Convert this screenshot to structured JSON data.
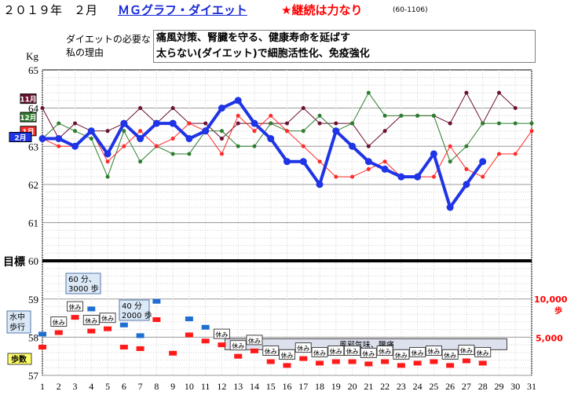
{
  "header": {
    "year_month": "２０１９年　２月",
    "title": "ＭＧグラフ・ダイエット",
    "motto": "★継続は力なり",
    "code": "(60-1106)"
  },
  "reason": {
    "label": "ダイエットの必要な私の理由",
    "lines": [
      "痛風対策、腎臓を守る、健康寿命を延ばす",
      "太らない(ダイエット)で細胞活性化、免疫強化"
    ]
  },
  "annotations": {
    "goal": "目標",
    "steps_label": "歩数",
    "swim_label": "水中歩行",
    "rest": "休み",
    "cold": "風邪気味、腰痛",
    "note1": [
      "60 分、",
      "3000 歩"
    ],
    "note2": [
      "40 分",
      "2000 歩"
    ]
  },
  "colors": {
    "feb": "#1e34e6",
    "jan": "#ff2a2a",
    "dec": "#2e7d2e",
    "nov": "#6b1030",
    "swim": "#1e6fd0",
    "steps": "#ff1a1a",
    "goal_line": "#000000",
    "right_axis": "#ff0000"
  },
  "chart_data": {
    "type": "line",
    "x": [
      1,
      2,
      3,
      4,
      5,
      6,
      7,
      8,
      9,
      10,
      11,
      12,
      13,
      14,
      15,
      16,
      17,
      18,
      19,
      20,
      21,
      22,
      23,
      24,
      25,
      26,
      27,
      28,
      29,
      30,
      31
    ],
    "xlim": [
      1,
      31
    ],
    "ylabel": "Kg",
    "yticks": [
      65,
      64,
      63,
      62,
      61,
      60,
      59,
      58,
      57
    ],
    "ylim": [
      57,
      65
    ],
    "goal": 60,
    "series": [
      {
        "name": "2月",
        "values": [
          63.2,
          63.2,
          63.0,
          63.4,
          62.8,
          63.6,
          63.2,
          63.6,
          63.6,
          63.2,
          63.4,
          64.0,
          64.2,
          63.6,
          63.2,
          62.6,
          62.6,
          62.0,
          63.4,
          63.0,
          62.6,
          62.4,
          62.2,
          62.2,
          62.8,
          61.4,
          62.0,
          62.6,
          null,
          null,
          null
        ]
      },
      {
        "name": "1月",
        "values": [
          63.2,
          63.0,
          63.0,
          63.4,
          62.6,
          63.0,
          63.4,
          63.0,
          63.2,
          63.6,
          63.4,
          62.8,
          63.8,
          63.4,
          63.8,
          63.4,
          63.0,
          62.6,
          62.2,
          62.2,
          62.4,
          62.6,
          62.2,
          62.2,
          62.2,
          63.0,
          62.4,
          62.2,
          62.8,
          62.8,
          63.4
        ]
      },
      {
        "name": "12月",
        "values": [
          63.2,
          63.6,
          63.4,
          63.2,
          62.2,
          63.4,
          62.6,
          63.0,
          62.8,
          62.8,
          63.4,
          63.4,
          63.0,
          63.0,
          63.6,
          63.4,
          63.4,
          63.8,
          63.4,
          63.6,
          64.4,
          63.8,
          63.8,
          63.8,
          63.8,
          62.6,
          63.0,
          63.6,
          63.6,
          63.6,
          63.6
        ]
      },
      {
        "name": "11月",
        "values": [
          64.0,
          63.2,
          63.6,
          63.4,
          63.4,
          63.6,
          64.0,
          63.6,
          64.0,
          63.6,
          63.6,
          63.2,
          63.6,
          63.6,
          63.6,
          63.6,
          64.0,
          63.6,
          63.6,
          63.6,
          63.0,
          63.4,
          63.8,
          63.8,
          63.8,
          63.6,
          64.4,
          63.6,
          64.4,
          64.0,
          null
        ]
      }
    ],
    "right_axis": {
      "ticks": [
        "10,000",
        "5,000"
      ],
      "unit": "歩"
    },
    "steps": [
      3700,
      5600,
      7600,
      5800,
      6100,
      3700,
      3500,
      7300,
      2900,
      5300,
      4500,
      4000,
      2500,
      3200,
      1800,
      1300,
      2200,
      1600,
      1800,
      1800,
      1500,
      1800,
      1300,
      1600,
      1800,
      1300,
      1900,
      1600,
      null,
      null,
      null
    ],
    "swim": [
      5400,
      null,
      null,
      8700,
      null,
      6600,
      5200,
      9700,
      null,
      7400,
      6300,
      null,
      null,
      null,
      null,
      null,
      null,
      null,
      null,
      null,
      null,
      null,
      null,
      null,
      null,
      null,
      null,
      null,
      null,
      null,
      null
    ],
    "rest_days": [
      2,
      3,
      4,
      5,
      12,
      13,
      14,
      15,
      16,
      17,
      18,
      19,
      20,
      21,
      22,
      23,
      24,
      25,
      26,
      27,
      28
    ]
  }
}
